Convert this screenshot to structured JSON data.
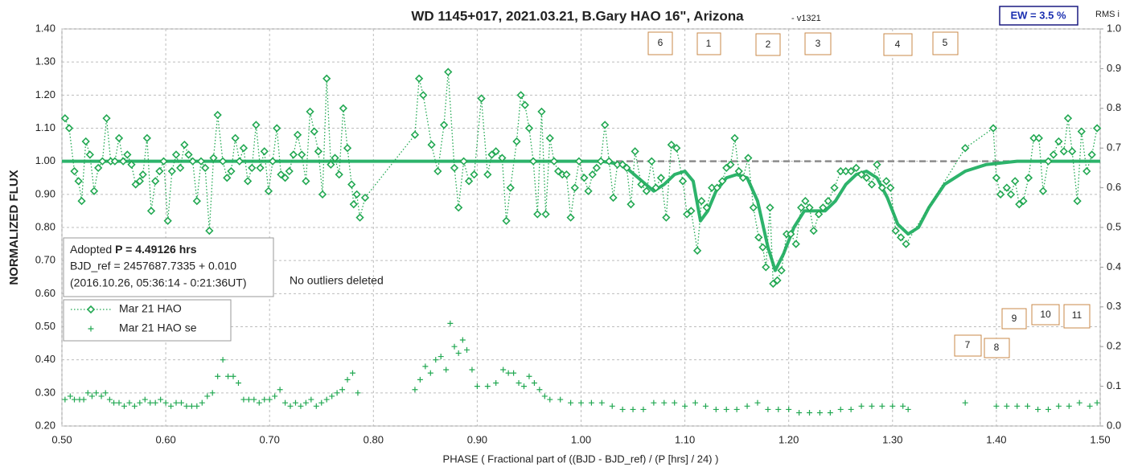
{
  "chart_data": {
    "type": "scatter",
    "title": "WD 1145+017, 2021.03.21, B.Gary HAO 16\", Arizona",
    "subtitle": "- v1321",
    "ew_label": "EW = 3.5 %",
    "y2_axis_label": "RMS i",
    "x_axis_label": "PHASE ( Fractional part of ((BJD - BJD_ref) / (P [hrs] / 24) )",
    "y_axis_label": "NORMALIZED FLUX",
    "info_lines": [
      "Adopted",
      "P = 4.49126 hrs",
      "BJD_ref = 2457687.7335 + 0.010",
      "(2016.10.26, 05:36:14 - 0:21:36UT)"
    ],
    "note": "No outliers deleted",
    "annotations": [
      "6",
      "1",
      "2",
      "3",
      "4",
      "5",
      "9",
      "10",
      "11",
      "7",
      "8"
    ],
    "xlim": [
      0.5,
      1.5
    ],
    "xticks": [
      {
        "value": 0.5,
        "label": "0.50"
      },
      {
        "value": 0.6,
        "label": "0.60"
      },
      {
        "value": 0.7,
        "label": "0.70"
      },
      {
        "value": 0.8,
        "label": "0.80"
      },
      {
        "value": 0.9,
        "label": "0.90"
      },
      {
        "value": 1.0,
        "label": "1.00"
      },
      {
        "value": 1.1,
        "label": "1.10"
      },
      {
        "value": 1.2,
        "label": "1.20"
      },
      {
        "value": 1.3,
        "label": "1.30"
      },
      {
        "value": 1.4,
        "label": "1.40"
      },
      {
        "value": 1.5,
        "label": "1.50"
      }
    ],
    "ylim": [
      0.2,
      1.4
    ],
    "yticks": [
      {
        "value": 0.2,
        "label": "0.20"
      },
      {
        "value": 0.3,
        "label": "0.30"
      },
      {
        "value": 0.4,
        "label": "0.40"
      },
      {
        "value": 0.5,
        "label": "0.50"
      },
      {
        "value": 0.6,
        "label": "0.60"
      },
      {
        "value": 0.7,
        "label": "0.70"
      },
      {
        "value": 0.8,
        "label": "0.80"
      },
      {
        "value": 0.9,
        "label": "0.90"
      },
      {
        "value": 1.0,
        "label": "1.00"
      },
      {
        "value": 1.1,
        "label": "1.10"
      },
      {
        "value": 1.2,
        "label": "1.20"
      },
      {
        "value": 1.3,
        "label": "1.30"
      },
      {
        "value": 1.4,
        "label": "1.40"
      }
    ],
    "y2lim": [
      0,
      1
    ],
    "y2ticks": [
      {
        "value": 0,
        "label": "0.0"
      },
      0.1,
      0.2,
      0.3,
      0.4,
      0.5,
      0.6,
      0.7,
      0.8,
      0.9,
      {
        "value": 1,
        "label": "1.0"
      }
    ],
    "grid": true,
    "reference_level": 1.0,
    "reference_color": "#8c8c8c",
    "model": {
      "color": "#2db36b",
      "x": [
        0.5,
        1.02,
        1.04,
        1.055,
        1.07,
        1.08,
        1.09,
        1.1,
        1.108,
        1.115,
        1.122,
        1.13,
        1.14,
        1.15,
        1.16,
        1.17,
        1.18,
        1.187,
        1.195,
        1.205,
        1.215,
        1.225,
        1.235,
        1.245,
        1.255,
        1.265,
        1.275,
        1.285,
        1.295,
        1.305,
        1.315,
        1.325,
        1.335,
        1.35,
        1.37,
        1.39,
        1.42,
        1.5
      ],
      "values": [
        1.0,
        1.0,
        0.99,
        0.95,
        0.91,
        0.93,
        0.96,
        0.97,
        0.94,
        0.82,
        0.85,
        0.91,
        0.95,
        0.96,
        0.95,
        0.88,
        0.74,
        0.67,
        0.72,
        0.8,
        0.85,
        0.85,
        0.85,
        0.88,
        0.93,
        0.96,
        0.97,
        0.95,
        0.89,
        0.81,
        0.78,
        0.8,
        0.86,
        0.93,
        0.97,
        0.99,
        1.0,
        1.0
      ]
    },
    "series": [
      {
        "name": "Mar 21 HAO",
        "color": "#22a852",
        "marker": "diamond",
        "x": [
          0.503,
          0.507,
          0.512,
          0.516,
          0.519,
          0.523,
          0.527,
          0.531,
          0.535,
          0.539,
          0.543,
          0.547,
          0.551,
          0.555,
          0.559,
          0.563,
          0.567,
          0.571,
          0.575,
          0.578,
          0.582,
          0.586,
          0.59,
          0.594,
          0.598,
          0.602,
          0.606,
          0.61,
          0.614,
          0.618,
          0.622,
          0.626,
          0.63,
          0.634,
          0.638,
          0.642,
          0.646,
          0.65,
          0.655,
          0.659,
          0.663,
          0.667,
          0.671,
          0.675,
          0.679,
          0.683,
          0.687,
          0.691,
          0.695,
          0.699,
          0.703,
          0.707,
          0.711,
          0.715,
          0.719,
          0.723,
          0.727,
          0.731,
          0.735,
          0.739,
          0.743,
          0.747,
          0.751,
          0.755,
          0.759,
          0.763,
          0.767,
          0.771,
          0.775,
          0.779,
          0.781,
          0.784,
          0.787,
          0.792,
          0.84,
          0.844,
          0.848,
          0.856,
          0.862,
          0.868,
          0.872,
          0.878,
          0.882,
          0.887,
          0.892,
          0.897,
          0.904,
          0.91,
          0.914,
          0.918,
          0.924,
          0.928,
          0.932,
          0.938,
          0.942,
          0.946,
          0.95,
          0.954,
          0.958,
          0.962,
          0.966,
          0.97,
          0.974,
          0.978,
          0.982,
          0.986,
          0.99,
          0.994,
          0.998,
          1.003,
          1.007,
          1.011,
          1.015,
          1.019,
          1.023,
          1.027,
          1.031,
          1.035,
          1.04,
          1.044,
          1.048,
          1.052,
          1.058,
          1.063,
          1.068,
          1.072,
          1.077,
          1.082,
          1.087,
          1.092,
          1.098,
          1.102,
          1.106,
          1.112,
          1.116,
          1.121,
          1.126,
          1.131,
          1.136,
          1.14,
          1.144,
          1.148,
          1.152,
          1.156,
          1.161,
          1.166,
          1.171,
          1.175,
          1.178,
          1.182,
          1.185,
          1.189,
          1.193,
          1.198,
          1.202,
          1.207,
          1.212,
          1.216,
          1.22,
          1.224,
          1.229,
          1.233,
          1.238,
          1.244,
          1.25,
          1.255,
          1.26,
          1.265,
          1.27,
          1.275,
          1.28,
          1.285,
          1.29,
          1.294,
          1.298,
          1.303,
          1.308,
          1.313,
          1.37,
          1.397,
          1.4,
          1.404,
          1.41,
          1.414,
          1.418,
          1.422,
          1.426,
          1.431,
          1.436,
          1.441,
          1.445,
          1.45,
          1.455,
          1.46,
          1.465,
          1.469,
          1.473,
          1.478,
          1.482,
          1.487,
          1.492,
          1.497
        ],
        "values": [
          1.13,
          1.1,
          0.97,
          0.94,
          0.88,
          1.06,
          1.02,
          0.91,
          0.98,
          1.0,
          1.13,
          1.0,
          1.0,
          1.07,
          1.0,
          1.02,
          0.99,
          0.93,
          0.94,
          0.96,
          1.07,
          0.85,
          0.94,
          0.97,
          1.0,
          0.82,
          0.97,
          1.02,
          0.98,
          1.05,
          1.02,
          1.0,
          0.88,
          1.0,
          0.98,
          0.79,
          1.01,
          1.14,
          1.0,
          0.95,
          0.97,
          1.07,
          1.0,
          1.04,
          0.94,
          0.98,
          1.11,
          0.98,
          1.03,
          0.91,
          1.0,
          1.1,
          0.96,
          0.95,
          0.97,
          1.02,
          1.08,
          1.02,
          0.94,
          1.15,
          1.09,
          1.03,
          0.9,
          1.25,
          0.99,
          1.01,
          0.96,
          1.16,
          1.04,
          0.93,
          0.87,
          0.9,
          0.83,
          0.89,
          1.08,
          1.25,
          1.2,
          1.05,
          0.97,
          1.11,
          1.27,
          0.98,
          0.86,
          1.0,
          0.94,
          0.96,
          1.19,
          0.96,
          1.02,
          1.03,
          1.01,
          0.82,
          0.92,
          1.06,
          1.2,
          1.17,
          1.1,
          1.0,
          0.84,
          1.15,
          0.84,
          1.07,
          1.0,
          0.97,
          0.96,
          0.96,
          0.83,
          0.92,
          1.0,
          0.95,
          0.91,
          0.96,
          0.98,
          1.0,
          1.11,
          1.0,
          0.89,
          0.99,
          0.99,
          0.98,
          0.87,
          1.03,
          0.93,
          0.91,
          1.0,
          0.92,
          0.95,
          0.83,
          1.05,
          1.04,
          0.94,
          0.84,
          0.85,
          0.73,
          0.88,
          0.86,
          0.92,
          0.92,
          0.94,
          0.98,
          0.99,
          1.07,
          0.97,
          0.95,
          1.01,
          0.86,
          0.77,
          0.74,
          0.68,
          0.86,
          0.63,
          0.64,
          0.67,
          0.78,
          0.78,
          0.75,
          0.86,
          0.88,
          0.86,
          0.79,
          0.84,
          0.86,
          0.88,
          0.92,
          0.97,
          0.97,
          0.97,
          0.98,
          0.96,
          0.95,
          0.93,
          0.99,
          0.92,
          0.94,
          0.92,
          0.79,
          0.77,
          0.75,
          1.04,
          1.1,
          0.95,
          0.9,
          0.92,
          0.9,
          0.94,
          0.87,
          0.88,
          0.95,
          1.07,
          1.07,
          0.91,
          1.0,
          1.02,
          1.06,
          1.03,
          1.13,
          1.03,
          0.88,
          1.09,
          0.97,
          1.02,
          1.1
        ]
      },
      {
        "name": "Mar 21 HAO se",
        "color": "#22a852",
        "marker": "plus",
        "x": [
          0.503,
          0.508,
          0.512,
          0.517,
          0.521,
          0.525,
          0.529,
          0.533,
          0.538,
          0.542,
          0.546,
          0.55,
          0.555,
          0.56,
          0.565,
          0.57,
          0.575,
          0.58,
          0.585,
          0.59,
          0.595,
          0.6,
          0.605,
          0.61,
          0.615,
          0.62,
          0.625,
          0.63,
          0.635,
          0.64,
          0.645,
          0.65,
          0.655,
          0.66,
          0.665,
          0.67,
          0.675,
          0.68,
          0.685,
          0.69,
          0.695,
          0.7,
          0.705,
          0.71,
          0.715,
          0.72,
          0.725,
          0.73,
          0.735,
          0.74,
          0.745,
          0.75,
          0.755,
          0.76,
          0.765,
          0.77,
          0.775,
          0.78,
          0.785,
          0.84,
          0.845,
          0.85,
          0.855,
          0.86,
          0.865,
          0.87,
          0.874,
          0.878,
          0.882,
          0.886,
          0.89,
          0.895,
          0.9,
          0.91,
          0.918,
          0.925,
          0.93,
          0.935,
          0.94,
          0.945,
          0.95,
          0.955,
          0.96,
          0.965,
          0.97,
          0.98,
          0.99,
          1.0,
          1.01,
          1.02,
          1.03,
          1.04,
          1.05,
          1.06,
          1.07,
          1.08,
          1.09,
          1.1,
          1.11,
          1.12,
          1.13,
          1.14,
          1.15,
          1.16,
          1.17,
          1.18,
          1.19,
          1.2,
          1.21,
          1.22,
          1.23,
          1.24,
          1.25,
          1.26,
          1.27,
          1.28,
          1.29,
          1.3,
          1.31,
          1.315,
          1.37,
          1.4,
          1.41,
          1.42,
          1.43,
          1.44,
          1.45,
          1.46,
          1.47,
          1.48,
          1.49,
          1.497
        ],
        "values": [
          0.28,
          0.29,
          0.28,
          0.28,
          0.28,
          0.3,
          0.29,
          0.3,
          0.29,
          0.3,
          0.28,
          0.27,
          0.27,
          0.26,
          0.27,
          0.26,
          0.27,
          0.28,
          0.27,
          0.27,
          0.28,
          0.27,
          0.26,
          0.27,
          0.27,
          0.26,
          0.26,
          0.26,
          0.27,
          0.29,
          0.3,
          0.35,
          0.4,
          0.35,
          0.35,
          0.33,
          0.28,
          0.28,
          0.28,
          0.27,
          0.28,
          0.28,
          0.29,
          0.31,
          0.27,
          0.26,
          0.27,
          0.26,
          0.27,
          0.28,
          0.26,
          0.27,
          0.28,
          0.29,
          0.3,
          0.31,
          0.34,
          0.36,
          0.3,
          0.31,
          0.34,
          0.38,
          0.36,
          0.4,
          0.41,
          0.37,
          0.51,
          0.44,
          0.42,
          0.46,
          0.43,
          0.37,
          0.32,
          0.32,
          0.33,
          0.37,
          0.36,
          0.36,
          0.33,
          0.32,
          0.35,
          0.33,
          0.31,
          0.29,
          0.28,
          0.28,
          0.27,
          0.27,
          0.27,
          0.27,
          0.26,
          0.25,
          0.25,
          0.25,
          0.27,
          0.27,
          0.27,
          0.26,
          0.27,
          0.26,
          0.25,
          0.25,
          0.25,
          0.26,
          0.27,
          0.25,
          0.25,
          0.25,
          0.24,
          0.24,
          0.24,
          0.24,
          0.25,
          0.25,
          0.26,
          0.26,
          0.26,
          0.26,
          0.26,
          0.25,
          0.27,
          0.26,
          0.26,
          0.26,
          0.26,
          0.25,
          0.25,
          0.26,
          0.26,
          0.27,
          0.26,
          0.27
        ]
      }
    ]
  }
}
